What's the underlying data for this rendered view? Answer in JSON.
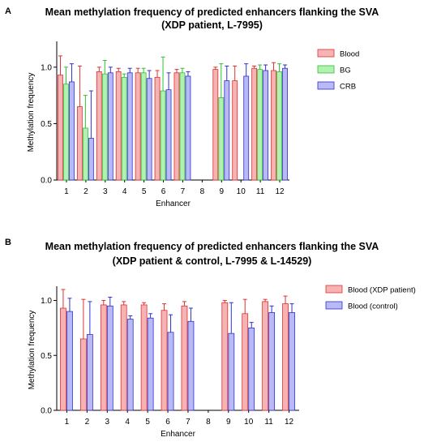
{
  "panel_a": {
    "letter": "A",
    "title_line1": "Mean methylation frequency of predicted enhancers flanking the SVA",
    "title_line2": "(XDP patient, L-7995)"
  },
  "panel_b": {
    "letter": "B",
    "title_line1": "Mean methylation frequency of predicted enhancers flanking the SVA",
    "title_line2": "(XDP patient  & control, L-7995 & L-14529)"
  },
  "colors": {
    "blood_fill": "#f6b3b3",
    "blood_stroke": "#e03030",
    "bg_fill": "#b3f0b3",
    "bg_stroke": "#30c030",
    "crb_fill": "#b9b9f6",
    "crb_stroke": "#3030d0"
  },
  "chart_data": [
    {
      "type": "bar",
      "xlabel": "Enhancer",
      "ylabel": "Methylation frequency",
      "ylim": [
        0,
        1.2
      ],
      "yticks": [
        "0.0",
        "0.5",
        "1.0"
      ],
      "categories": [
        "1",
        "2",
        "3",
        "4",
        "5",
        "6",
        "7",
        "8",
        "9",
        "10",
        "11",
        "12"
      ],
      "legend_position": "right",
      "series": [
        {
          "name": "Blood",
          "color_key": "blood",
          "values": [
            0.93,
            0.65,
            0.96,
            0.96,
            0.95,
            0.91,
            0.95,
            null,
            0.98,
            0.88,
            0.99,
            0.97
          ],
          "errors": [
            0.17,
            0.36,
            0.04,
            0.03,
            0.04,
            0.06,
            0.03,
            null,
            0.02,
            0.13,
            0.02,
            0.07
          ]
        },
        {
          "name": "BG",
          "color_key": "bg",
          "values": [
            0.85,
            0.46,
            0.94,
            0.91,
            0.95,
            0.79,
            0.95,
            null,
            0.73,
            null,
            0.98,
            0.96
          ],
          "errors": [
            0.15,
            0.29,
            0.12,
            0.03,
            0.04,
            0.3,
            0.04,
            null,
            0.3,
            null,
            0.04,
            0.07
          ]
        },
        {
          "name": "CRB",
          "color_key": "crb",
          "values": [
            0.87,
            0.37,
            0.95,
            0.95,
            0.9,
            0.8,
            0.92,
            null,
            0.88,
            0.92,
            0.97,
            0.99
          ],
          "errors": [
            0.16,
            0.42,
            0.05,
            0.04,
            0.07,
            0.15,
            0.04,
            null,
            0.13,
            0.11,
            0.05,
            0.03
          ]
        }
      ]
    },
    {
      "type": "bar",
      "xlabel": "Enhancer",
      "ylabel": "Methylation frequency",
      "ylim": [
        0,
        1.1
      ],
      "yticks": [
        "0.0",
        "0.5",
        "1.0"
      ],
      "categories": [
        "1",
        "2",
        "3",
        "4",
        "5",
        "6",
        "7",
        "8",
        "9",
        "10",
        "11",
        "12"
      ],
      "legend_position": "right",
      "series": [
        {
          "name": "Blood (XDP patient)",
          "color_key": "blood",
          "values": [
            0.93,
            0.65,
            0.96,
            0.96,
            0.96,
            0.91,
            0.95,
            null,
            0.98,
            0.88,
            0.99,
            0.97
          ],
          "errors": [
            0.17,
            0.36,
            0.04,
            0.03,
            0.02,
            0.06,
            0.04,
            null,
            0.02,
            0.13,
            0.02,
            0.07
          ]
        },
        {
          "name": "Blood (control)",
          "color_key": "crb",
          "values": [
            0.9,
            0.69,
            0.95,
            0.83,
            0.84,
            0.71,
            0.81,
            null,
            0.7,
            0.75,
            0.89,
            0.89
          ],
          "errors": [
            0.12,
            0.3,
            0.08,
            0.03,
            0.04,
            0.16,
            0.12,
            null,
            0.28,
            0.05,
            0.06,
            0.08
          ]
        }
      ]
    }
  ]
}
